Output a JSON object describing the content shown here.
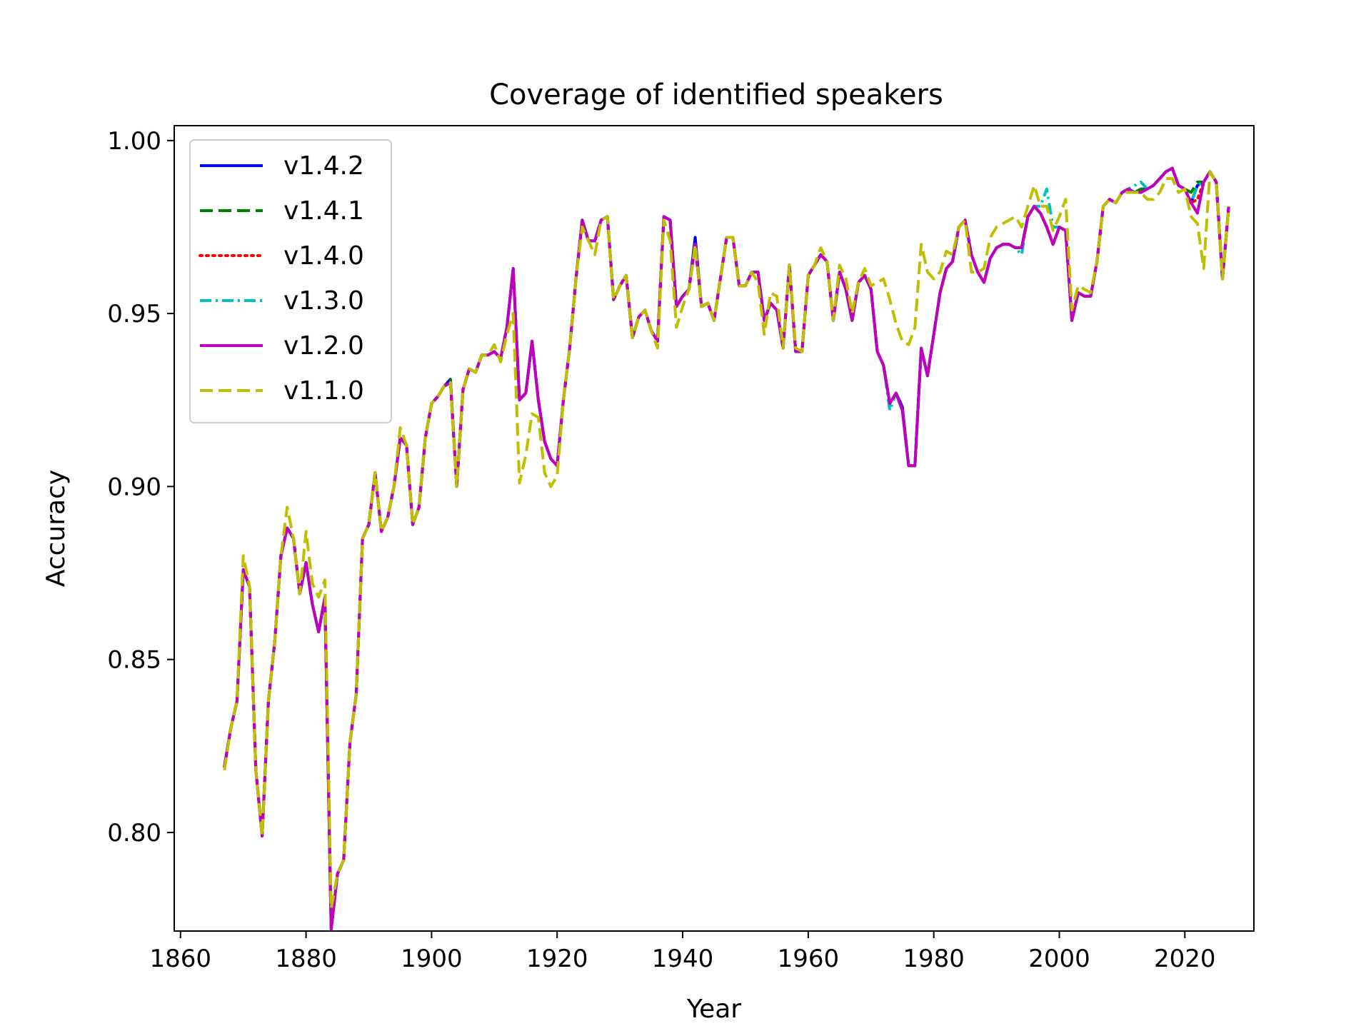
{
  "chart_data": {
    "type": "line",
    "title": "Coverage of identified speakers",
    "xlabel": "Year",
    "ylabel": "Accuracy",
    "xlim": [
      1859,
      2031
    ],
    "ylim": [
      0.7715,
      1.0043
    ],
    "xticks": [
      1860,
      1880,
      1900,
      1920,
      1940,
      1960,
      1980,
      2000,
      2020
    ],
    "xtick_labels": [
      "1860",
      "1880",
      "1900",
      "1920",
      "1940",
      "1960",
      "1980",
      "2000",
      "2020"
    ],
    "yticks": [
      0.8,
      0.85,
      0.9,
      0.95,
      1.0
    ],
    "ytick_labels": [
      "0.80",
      "0.85",
      "0.90",
      "0.95",
      "1.00"
    ],
    "grid": false,
    "legend_position": "upper-left",
    "x_start": 1867,
    "base_values": [
      0.819,
      0.83,
      0.838,
      0.876,
      0.871,
      0.818,
      0.799,
      0.838,
      0.855,
      0.88,
      0.888,
      0.885,
      0.869,
      0.878,
      0.866,
      0.858,
      0.868,
      0.772,
      0.788,
      0.792,
      0.826,
      0.84,
      0.885,
      0.889,
      0.904,
      0.887,
      0.891,
      0.9,
      0.914,
      0.912,
      0.889,
      0.894,
      0.914,
      0.924,
      0.926,
      0.929,
      0.93,
      0.9,
      0.928,
      0.934,
      0.933,
      0.938,
      0.938,
      0.939,
      0.937,
      0.946,
      0.963,
      0.925,
      0.927,
      0.942,
      0.925,
      0.913,
      0.908,
      0.906,
      0.925,
      0.94,
      0.96,
      0.977,
      0.971,
      0.971,
      0.977,
      0.978,
      0.954,
      0.958,
      0.961,
      0.943,
      0.949,
      0.951,
      0.945,
      0.942,
      0.978,
      0.977,
      0.952,
      0.955,
      0.957,
      0.97,
      0.952,
      0.953,
      0.948,
      0.96,
      0.972,
      0.972,
      0.958,
      0.958,
      0.962,
      0.962,
      0.948,
      0.953,
      0.951,
      0.94,
      0.964,
      0.939,
      0.939,
      0.961,
      0.964,
      0.967,
      0.965,
      0.948,
      0.962,
      0.957,
      0.948,
      0.959,
      0.961,
      0.957,
      0.939,
      0.935,
      0.924,
      0.927,
      0.922,
      0.906,
      0.906,
      0.94,
      0.932,
      0.944,
      0.956,
      0.963,
      0.965,
      0.975,
      0.977,
      0.967,
      0.962,
      0.959,
      0.966,
      0.969,
      0.97,
      0.97,
      0.969,
      0.969,
      0.978,
      0.981,
      0.979,
      0.975,
      0.97,
      0.975,
      0.974,
      0.948,
      0.956,
      0.955,
      0.955,
      0.965,
      0.981,
      0.983,
      0.982,
      0.985,
      0.986,
      0.985,
      0.985,
      0.986,
      0.987,
      0.989,
      0.991,
      0.992,
      0.987,
      0.986,
      0.982,
      0.979,
      0.988,
      0.991,
      0.988,
      0.96,
      0.981
    ],
    "series": [
      {
        "name": "v1.4.2",
        "color": "#0000ff",
        "style": "solid",
        "deltas": {
          "1903": 0.001,
          "1942": 0.002,
          "1975": 0.001,
          "2013": 0.001,
          "2022": 0.008
        }
      },
      {
        "name": "v1.4.1",
        "color": "#008000",
        "style": "dashed",
        "deltas": {
          "1903": 0.001,
          "2013": 0.001,
          "2021": 0.003,
          "2022": 0.009
        }
      },
      {
        "name": "v1.4.0",
        "color": "#ff0000",
        "style": "dotted",
        "deltas": {
          "2022": 0.004
        }
      },
      {
        "name": "v1.3.0",
        "color": "#00bfbf",
        "style": "dashdot",
        "deltas": {
          "1973": -0.002,
          "1994": -0.002,
          "1997": 0.002,
          "1998": 0.011,
          "1999": 0.005,
          "2012": 0.002,
          "2013": 0.003,
          "2022": 0.008
        }
      },
      {
        "name": "v1.2.0",
        "color": "#bf00bf",
        "style": "solid",
        "deltas": {}
      },
      {
        "name": "v1.1.0",
        "color": "#bfbf00",
        "style": "dashed",
        "deltas": {
          "1867": -0.001,
          "1870": 0.004,
          "1877": 0.006,
          "1880": 0.009,
          "1881": 0.006,
          "1882": 0.01,
          "1883": 0.005,
          "1884": 0.006,
          "1895": 0.003,
          "1910": 0.002,
          "1911": -0.001,
          "1912": -0.002,
          "1913": -0.013,
          "1914": -0.024,
          "1915": -0.018,
          "1916": -0.021,
          "1917": -0.005,
          "1918": -0.009,
          "1919": -0.008,
          "1920": -0.003,
          "1924": -0.002,
          "1926": -0.004,
          "1936": -0.002,
          "1937": -0.001,
          "1938": -0.006,
          "1939": -0.006,
          "1940": -0.003,
          "1952": -0.003,
          "1953": -0.004,
          "1954": 0.003,
          "1955": 0.004,
          "1958": 0.001,
          "1962": 0.002,
          "1965": 0.002,
          "1966": 0.003,
          "1967": 0.002,
          "1969": 0.002,
          "1970": 0.001,
          "1971": 0.02,
          "1972": 0.025,
          "1973": 0.03,
          "1974": 0.02,
          "1975": 0.02,
          "1976": 0.035,
          "1977": 0.04,
          "1978": 0.03,
          "1979": 0.03,
          "1980": 0.016,
          "1981": 0.006,
          "1982": 0.005,
          "1983": 0.002,
          "1986": -0.005,
          "1988": 0.004,
          "1989": 0.006,
          "1990": 0.006,
          "1991": 0.006,
          "1992": 0.007,
          "1993": 0.009,
          "1994": 0.006,
          "1995": 0.003,
          "1996": 0.006,
          "1997": 0.002,
          "1998": 0.006,
          "1999": 0.004,
          "2000": 0.003,
          "2001": 0.009,
          "2002": 0.003,
          "2003": 0.002,
          "2004": 0.002,
          "2005": 0.001,
          "2011": -0.001,
          "2014": -0.003,
          "2015": -0.004,
          "2016": -0.004,
          "2017": -0.002,
          "2018": -0.003,
          "2019": -0.002,
          "2021": -0.004,
          "2022": -0.003,
          "2023": -0.025
        }
      }
    ]
  }
}
